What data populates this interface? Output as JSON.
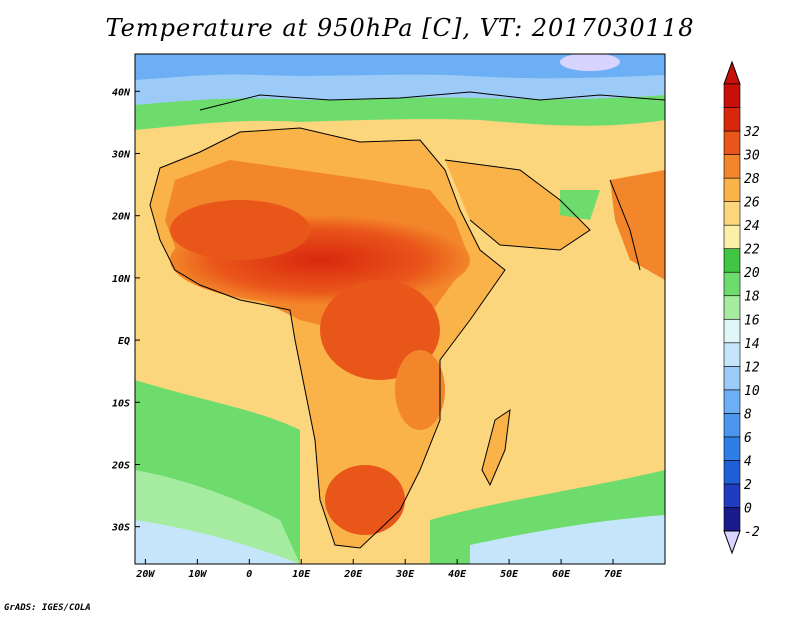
{
  "title": "Temperature at 950hPa [C], VT: 2017030118",
  "credit": "GrADS: IGES/COLA",
  "map": {
    "region": "Africa and surrounding oceans",
    "lon_range": [
      -22,
      80
    ],
    "lat_range": [
      -36,
      46
    ],
    "x_ticks": [
      {
        "lon": -20,
        "label": "20W"
      },
      {
        "lon": -10,
        "label": "10W"
      },
      {
        "lon": 0,
        "label": "0"
      },
      {
        "lon": 10,
        "label": "10E"
      },
      {
        "lon": 20,
        "label": "20E"
      },
      {
        "lon": 30,
        "label": "30E"
      },
      {
        "lon": 40,
        "label": "40E"
      },
      {
        "lon": 50,
        "label": "50E"
      },
      {
        "lon": 60,
        "label": "60E"
      },
      {
        "lon": 70,
        "label": "70E"
      }
    ],
    "y_ticks": [
      {
        "lat": 40,
        "label": "40N"
      },
      {
        "lat": 30,
        "label": "30N"
      },
      {
        "lat": 20,
        "label": "20N"
      },
      {
        "lat": 10,
        "label": "10N"
      },
      {
        "lat": 0,
        "label": "EQ"
      },
      {
        "lat": -10,
        "label": "10S"
      },
      {
        "lat": -20,
        "label": "20S"
      },
      {
        "lat": -30,
        "label": "30S"
      }
    ]
  },
  "colorbar": {
    "levels": [
      "-2",
      "0",
      "2",
      "4",
      "6",
      "8",
      "10",
      "12",
      "14",
      "16",
      "18",
      "20",
      "22",
      "24",
      "26",
      "28",
      "30",
      "32"
    ],
    "colors": [
      "#1a1a8c",
      "#1f3cc0",
      "#1e5fd8",
      "#2f7ee8",
      "#4b97ef",
      "#6daff5",
      "#9dcbf7",
      "#c5e6fa",
      "#e1f7f7",
      "#a6eca0",
      "#6edc6c",
      "#3fc443",
      "#fbf0a8",
      "#fcd67d",
      "#f9b349",
      "#f3862a",
      "#e9561a",
      "#d9270e",
      "#c8100a"
    ],
    "under_color": "#d8d4ff",
    "over_color": "#c8100a"
  }
}
